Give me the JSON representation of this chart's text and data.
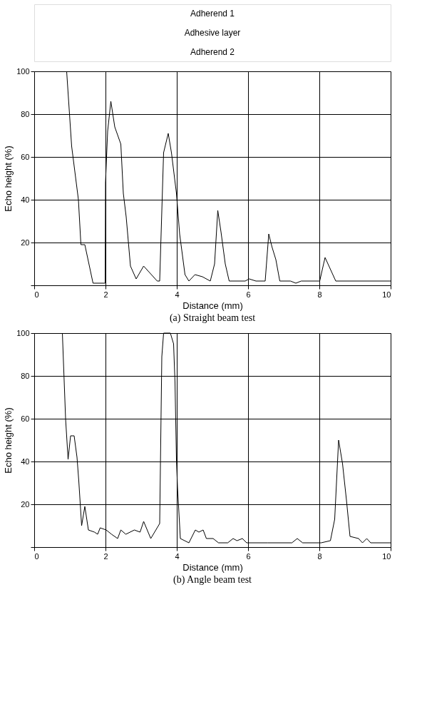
{
  "chart_data": [
    {
      "type": "other",
      "annotations": [
        "Adherend 1",
        "Adhesive layer",
        "Adherend 2"
      ]
    },
    {
      "type": "line",
      "title": "(a) Straight beam test",
      "xlabel": "Distance (mm)",
      "ylabel": "Echo height (%)",
      "xlim": [
        0,
        10
      ],
      "xticks": [
        0,
        2,
        4,
        6,
        8,
        10
      ],
      "ylim": [
        0,
        100
      ],
      "yticks": [
        {
          "value": 0,
          "label": null
        },
        20,
        40,
        60,
        80,
        100
      ],
      "grid": true,
      "marker": "none",
      "line_style": "solid",
      "series": [
        {
          "color": "#000000",
          "x": [
            0.91,
            1.05,
            1.24,
            1.31,
            1.42,
            1.65,
            1.99,
            2.0,
            2.06,
            2.15,
            2.26,
            2.43,
            2.5,
            2.58,
            2.7,
            2.86,
            3.07,
            3.45,
            3.52,
            3.63,
            3.76,
            3.85,
            3.99,
            4.08,
            4.23,
            4.34,
            4.51,
            4.72,
            4.94,
            5.06,
            5.15,
            5.24,
            5.36,
            5.47,
            5.92,
            6.03,
            6.22,
            6.48,
            6.58,
            6.67,
            6.78,
            6.89,
            7.19,
            7.34,
            7.49,
            7.98,
            8.01,
            8.16,
            8.46,
            10
          ],
          "values": [
            100,
            65,
            40,
            19,
            19,
            1,
            1,
            48,
            72,
            86,
            74,
            66,
            43,
            32,
            9,
            3,
            9,
            2,
            2,
            62,
            71,
            62,
            43,
            24,
            5,
            2,
            5,
            4,
            2,
            10,
            35,
            25,
            10,
            2,
            2,
            3,
            2,
            2,
            24,
            18,
            12,
            2,
            2,
            1,
            2,
            2,
            2,
            13,
            2,
            2
          ]
        }
      ]
    },
    {
      "type": "line",
      "title": "(b) Angle beam test",
      "xlabel": "Distance (mm)",
      "ylabel": "Echo height (%)",
      "xlim": [
        0,
        10
      ],
      "xticks": [
        0,
        2,
        4,
        6,
        8,
        10
      ],
      "ylim": [
        0,
        100
      ],
      "yticks": [
        {
          "value": 0,
          "label": null
        },
        20,
        40,
        60,
        80,
        100
      ],
      "grid": true,
      "marker": "none",
      "line_style": "solid",
      "series": [
        {
          "color": "#000000",
          "x": [
            0.79,
            0.88,
            0.95,
            1.02,
            1.12,
            1.2,
            1.25,
            1.33,
            1.42,
            1.52,
            1.69,
            1.78,
            1.85,
            2.02,
            2.17,
            2.34,
            2.43,
            2.57,
            2.81,
            2.97,
            3.07,
            3.27,
            3.52,
            3.58,
            3.63,
            3.82,
            3.91,
            3.95,
            3.99,
            4.02,
            4.1,
            4.34,
            4.52,
            4.62,
            4.74,
            4.83,
            5.02,
            5.17,
            5.43,
            5.58,
            5.69,
            5.84,
            5.96,
            6.55,
            6.7,
            7.23,
            7.38,
            7.53,
            8.05,
            8.31,
            8.43,
            8.54,
            8.65,
            8.76,
            8.86,
            9.1,
            9.21,
            9.33,
            9.44,
            10
          ],
          "values": [
            100,
            60,
            41,
            52,
            52,
            42,
            31,
            10,
            19,
            8,
            7,
            6,
            9,
            8,
            6,
            4,
            8,
            6,
            8,
            7,
            12,
            4,
            11,
            89,
            100,
            100,
            95,
            77,
            41,
            28,
            4,
            2,
            8,
            7,
            8,
            4,
            4,
            2,
            2,
            4,
            3,
            4,
            2,
            2,
            2,
            2,
            4,
            2,
            2,
            3,
            13,
            50,
            39,
            22,
            5,
            4,
            2,
            4,
            2,
            2
          ]
        }
      ]
    }
  ]
}
